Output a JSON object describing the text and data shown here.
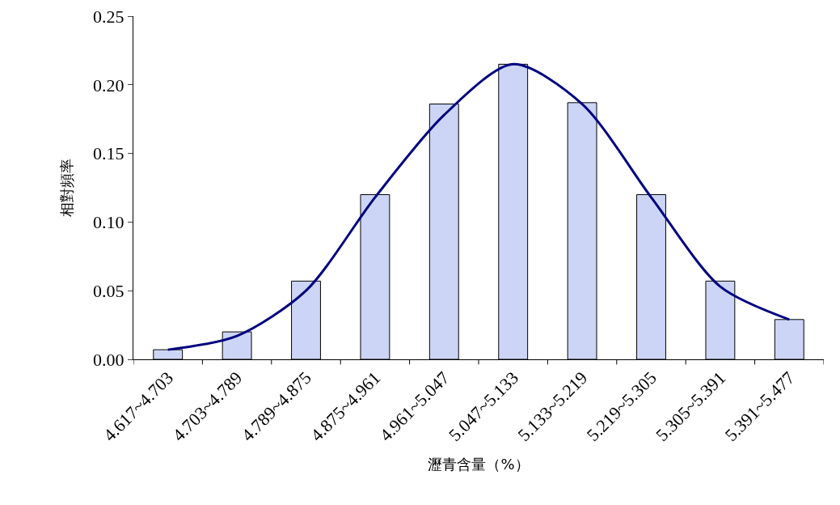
{
  "chart_data": {
    "type": "bar",
    "xlabel": "瀝青含量（%）",
    "ylabel": "相對頻率",
    "categories": [
      "4.617~4.703",
      "4.703~4.789",
      "4.789~4.875",
      "4.875~4.961",
      "4.961~5.047",
      "5.047~5.133",
      "5.133~5.219",
      "5.219~5.305",
      "5.305~5.391",
      "5.391~5.477"
    ],
    "series": [
      {
        "color": "#ccd5f5",
        "values": [
          0.007,
          0.02,
          0.057,
          0.12,
          0.186,
          0.215,
          0.187,
          0.12,
          0.057,
          0.029
        ]
      },
      {
        "type": "line",
        "color": "#000080",
        "values": [
          0.007,
          0.017,
          0.05,
          0.118,
          0.178,
          0.215,
          0.186,
          0.118,
          0.053,
          0.029
        ]
      }
    ],
    "ylim": [
      0,
      0.25
    ],
    "yticks": [
      {
        "value": 0,
        "label": "0.00"
      },
      {
        "value": 0.05,
        "label": "0.05"
      },
      {
        "value": 0.1,
        "label": "0.10"
      },
      {
        "value": 0.15,
        "label": "0.15"
      },
      {
        "value": 0.2,
        "label": "0.20"
      },
      {
        "value": 0.25,
        "label": "0.25"
      }
    ],
    "grid": false,
    "marker": "none",
    "line_style": "solid"
  }
}
